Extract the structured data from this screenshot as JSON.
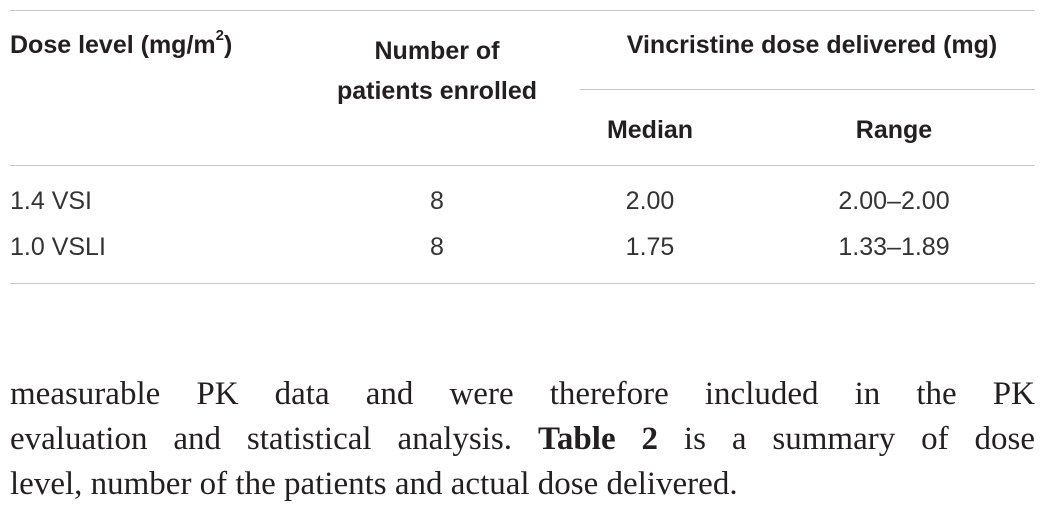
{
  "table": {
    "header": {
      "dose_level": [
        "Dose level (mg/m",
        "2",
        ")"
      ],
      "patients": [
        "Number of",
        "patients enrolled"
      ],
      "dose_delivered": "Vincristine dose delivered (mg)",
      "median": "Median",
      "range": "Range"
    },
    "rows": [
      [
        "1.4 VSI",
        "8",
        "2.00",
        "2.00–2.00"
      ],
      [
        "1.0 VSLI",
        "8",
        "1.75",
        "1.33–1.89"
      ]
    ]
  },
  "paragraph": {
    "lines": [
      [
        "measurable PK data and were therefore included in the PK"
      ],
      [
        "evaluation and statistical analysis. ",
        "Table 2",
        " is a summary of dose"
      ],
      [
        "level, number of the patients and actual dose delivered."
      ]
    ]
  }
}
